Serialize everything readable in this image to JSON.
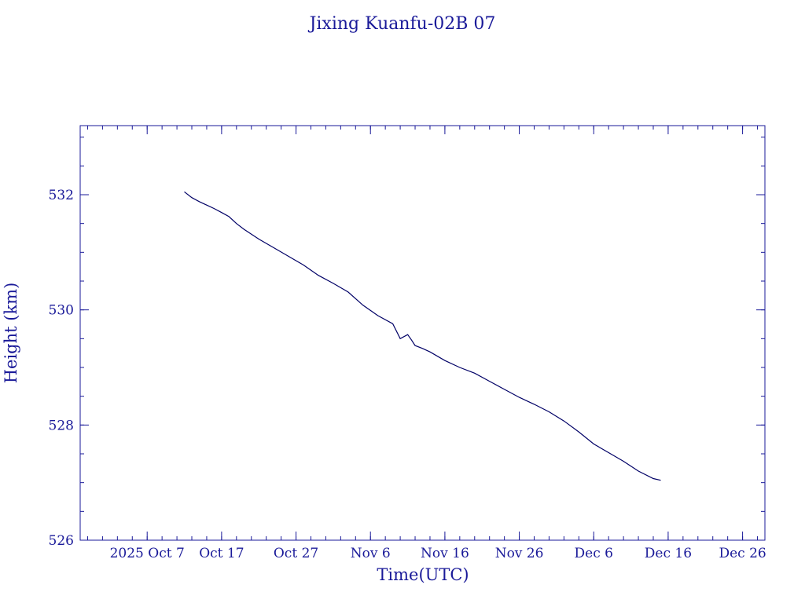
{
  "chart_data": {
    "type": "line",
    "title": "Jixing Kuanfu-02B 07",
    "xlabel": "Time(UTC)",
    "ylabel": "Height (km)",
    "xlim": [
      "2025-09-28",
      "2025-12-29"
    ],
    "ylim": [
      526,
      533.2
    ],
    "x_ticks": [
      {
        "date": "2025-10-07",
        "label": "2025 Oct  7"
      },
      {
        "date": "2025-10-17",
        "label": "Oct 17"
      },
      {
        "date": "2025-10-27",
        "label": "Oct 27"
      },
      {
        "date": "2025-11-06",
        "label": "Nov  6"
      },
      {
        "date": "2025-11-16",
        "label": "Nov 16"
      },
      {
        "date": "2025-11-26",
        "label": "Nov 26"
      },
      {
        "date": "2025-12-06",
        "label": "Dec  6"
      },
      {
        "date": "2025-12-16",
        "label": "Dec 16"
      },
      {
        "date": "2025-12-26",
        "label": "Dec 26"
      }
    ],
    "y_ticks": [
      526,
      528,
      530,
      532
    ],
    "grid": false,
    "colors": {
      "line": "#000066",
      "axes": "#1a1a99",
      "text": "#1a1a99"
    },
    "series": [
      {
        "x": [
          "2025-10-12",
          "2025-10-13",
          "2025-10-14",
          "2025-10-15",
          "2025-10-16",
          "2025-10-17",
          "2025-10-18",
          "2025-10-19",
          "2025-10-20",
          "2025-10-22",
          "2025-10-24",
          "2025-10-26",
          "2025-10-28",
          "2025-10-30",
          "2025-11-01",
          "2025-11-03",
          "2025-11-05",
          "2025-11-07",
          "2025-11-09",
          "2025-11-10",
          "2025-11-11",
          "2025-11-11T12:00",
          "2025-11-12",
          "2025-11-13",
          "2025-11-14",
          "2025-11-16",
          "2025-11-18",
          "2025-11-20",
          "2025-11-22",
          "2025-11-24",
          "2025-11-26",
          "2025-11-28",
          "2025-11-30",
          "2025-12-02",
          "2025-12-04",
          "2025-12-06",
          "2025-12-08",
          "2025-12-10",
          "2025-12-12",
          "2025-12-14",
          "2025-12-15"
        ],
        "values": [
          532.05,
          531.95,
          531.88,
          531.82,
          531.76,
          531.69,
          531.62,
          531.5,
          531.4,
          531.23,
          531.08,
          530.93,
          530.78,
          530.6,
          530.46,
          530.31,
          530.08,
          529.9,
          529.76,
          529.5,
          529.57,
          529.48,
          529.38,
          529.33,
          529.27,
          529.12,
          529.0,
          528.9,
          528.76,
          528.62,
          528.48,
          528.36,
          528.23,
          528.07,
          527.88,
          527.67,
          527.52,
          527.37,
          527.2,
          527.07,
          527.04
        ]
      }
    ]
  }
}
